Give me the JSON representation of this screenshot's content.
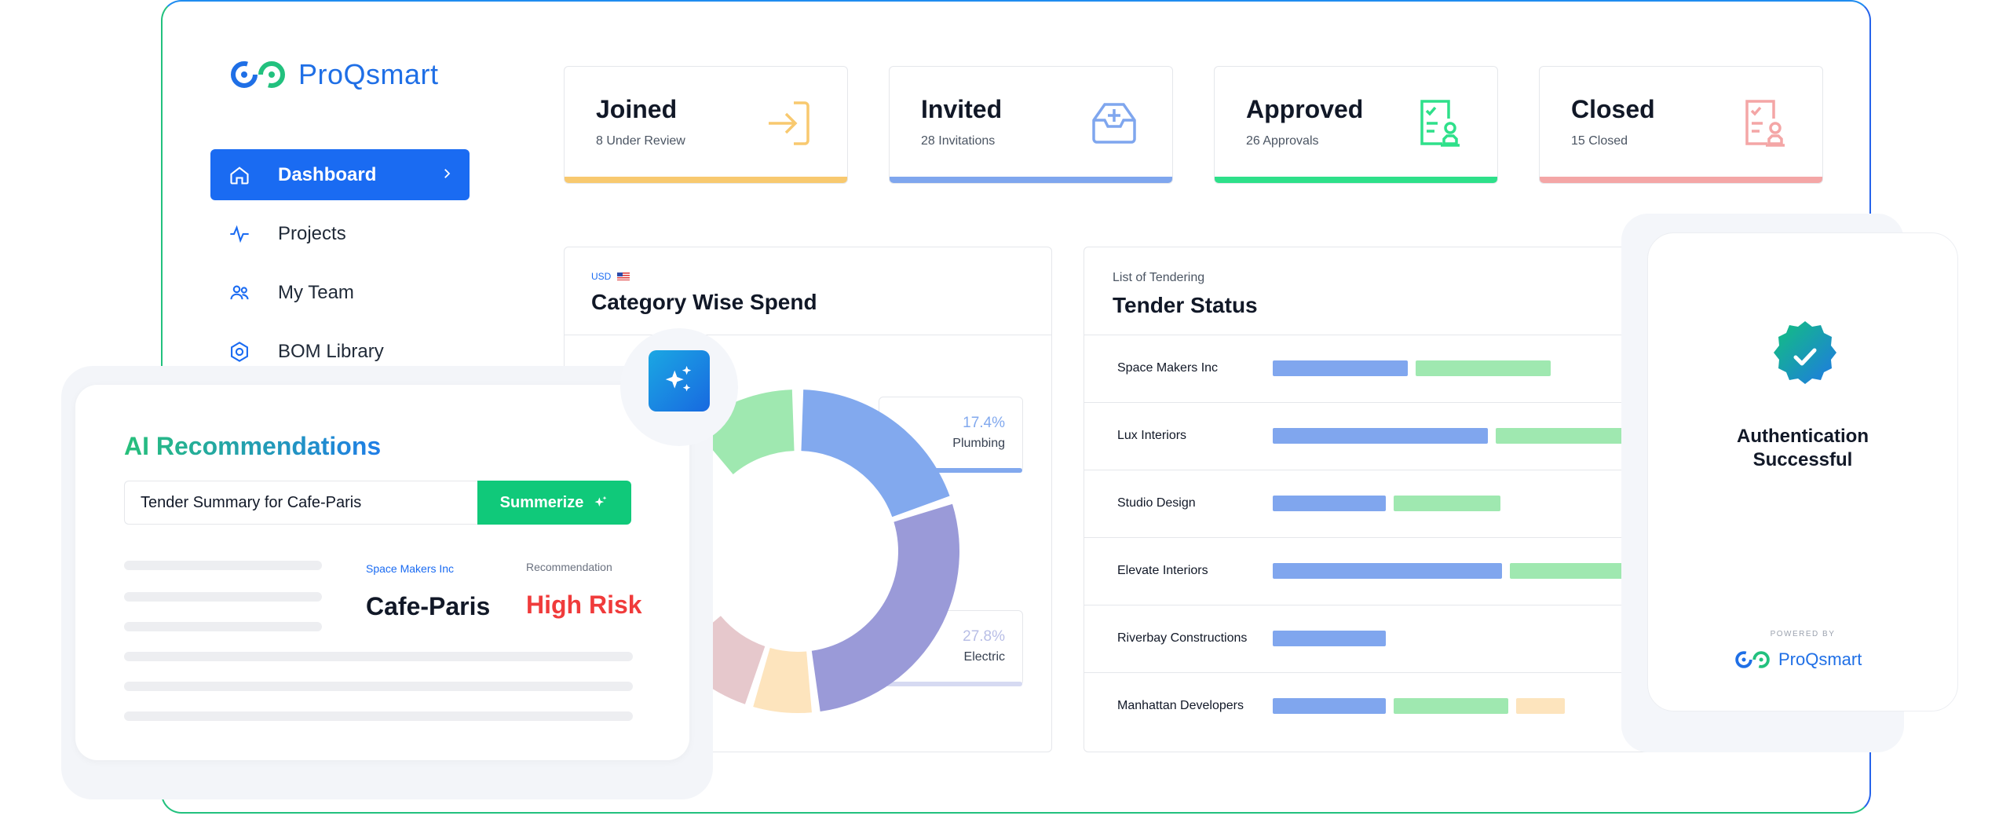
{
  "brand": {
    "name": "ProQsmart",
    "accent": "#1a6bf2",
    "green": "#10c97a"
  },
  "sidebar": {
    "items": [
      {
        "label": "Dashboard",
        "icon": "home-icon",
        "active": true
      },
      {
        "label": "Projects",
        "icon": "activity-icon"
      },
      {
        "label": "My Team",
        "icon": "team-icon"
      },
      {
        "label": "BOM Library",
        "icon": "library-icon"
      }
    ]
  },
  "stats": [
    {
      "title": "Joined",
      "subtitle": "8 Under Review",
      "icon": "login-arrow-icon",
      "color": "#f8c96f"
    },
    {
      "title": "Invited",
      "subtitle": "28 Invitations",
      "icon": "inbox-plus-icon",
      "color": "#7fa6ee"
    },
    {
      "title": "Approved",
      "subtitle": "26 Approvals",
      "icon": "approval-doc-icon",
      "color": "#2ee08a"
    },
    {
      "title": "Closed",
      "subtitle": "15 Closed",
      "icon": "closed-doc-icon",
      "color": "#f4a6a6"
    }
  ],
  "category_spend": {
    "currency": "USD",
    "title": "Category Wise Spend",
    "legend": [
      {
        "pct": "17.4%",
        "label": "Plumbing",
        "color": "#82a9ee"
      },
      {
        "pct": "27.8%",
        "label": "Electric",
        "color": "#9a9ad8"
      }
    ]
  },
  "chart_data": {
    "type": "pie",
    "title": "Category Wise Spend",
    "slices": [
      {
        "label": "Plumbing",
        "value": 17.4,
        "color": "#82a9ee"
      },
      {
        "label": "Electric",
        "value": 27.8,
        "color": "#9a9ad8"
      }
    ],
    "hidden_slice_colors": [
      "#fde4bd",
      "#e6c8cc",
      "#9fe8b0"
    ]
  },
  "tender": {
    "sub": "List of Tendering",
    "title": "Tender Status",
    "rows": [
      {
        "name": "Space Makers Inc",
        "segs": [
          {
            "l": 1620,
            "w": 172,
            "c": "#80a6ee"
          },
          {
            "l": 1802,
            "w": 172,
            "c": "#9fe8b0"
          }
        ]
      },
      {
        "name": "Lux Interiors",
        "segs": [
          {
            "l": 1620,
            "w": 274,
            "c": "#80a6ee"
          },
          {
            "l": 1904,
            "w": 172,
            "c": "#9fe8b0"
          },
          {
            "l": 2086,
            "w": 20,
            "c": "#fde4bd"
          }
        ]
      },
      {
        "name": "Studio Design",
        "segs": [
          {
            "l": 1620,
            "w": 144,
            "c": "#80a6ee"
          },
          {
            "l": 1774,
            "w": 136,
            "c": "#9fe8b0"
          }
        ]
      },
      {
        "name": "Elevate Interiors",
        "segs": [
          {
            "l": 1620,
            "w": 292,
            "c": "#80a6ee"
          },
          {
            "l": 1922,
            "w": 184,
            "c": "#9fe8b0"
          }
        ]
      },
      {
        "name": "Riverbay Constructions",
        "segs": [
          {
            "l": 1620,
            "w": 144,
            "c": "#80a6ee"
          }
        ]
      },
      {
        "name": "Manhattan Developers",
        "segs": [
          {
            "l": 1620,
            "w": 144,
            "c": "#80a6ee"
          },
          {
            "l": 1774,
            "w": 146,
            "c": "#9fe8b0"
          },
          {
            "l": 1930,
            "w": 62,
            "c": "#fde4bd"
          }
        ]
      }
    ]
  },
  "auth": {
    "message_line1": "Authentication",
    "message_line2": "Successful",
    "powered_by": "POWERED BY",
    "brand": "ProQsmart"
  },
  "ai": {
    "heading": "AI Recommendations",
    "input_value": "Tender Summary for Cafe-Paris",
    "button_label": "Summerize",
    "company_label": "Space Makers Inc",
    "company_value": "Cafe-Paris",
    "recommendation_label": "Recommendation",
    "recommendation_value": "High Risk"
  }
}
